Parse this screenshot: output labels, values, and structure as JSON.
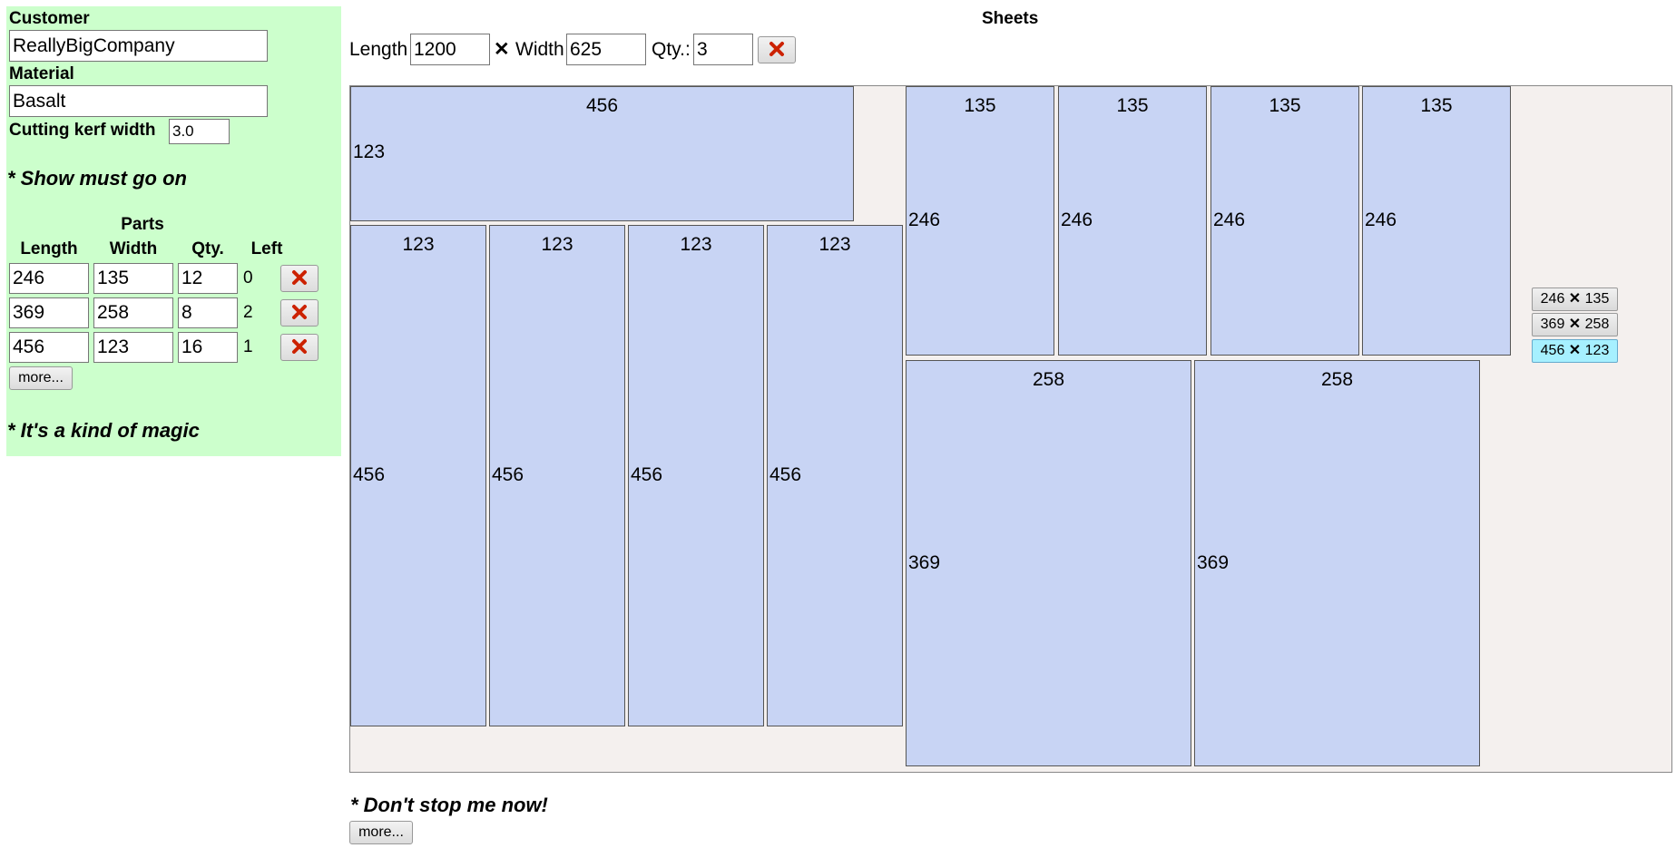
{
  "customer": {
    "label": "Customer",
    "value": "ReallyBigCompany"
  },
  "material": {
    "label": "Material",
    "value": "Basalt"
  },
  "kerf": {
    "label": "Cutting kerf width",
    "value": "3.0"
  },
  "note1": "* Show must go on",
  "parts": {
    "title": "Parts",
    "headers": {
      "length": "Length",
      "width": "Width",
      "qty": "Qty.",
      "left": "Left"
    },
    "rows": [
      {
        "length": "246",
        "width": "135",
        "qty": "12",
        "left": "0"
      },
      {
        "length": "369",
        "width": "258",
        "qty": "8",
        "left": "2"
      },
      {
        "length": "456",
        "width": "123",
        "qty": "16",
        "left": "1"
      }
    ],
    "more": "more..."
  },
  "note2": "* It's a kind of magic",
  "sheets": {
    "title": "Sheets",
    "length_label": "Length",
    "length": "1200",
    "times": "✕",
    "width_label": "Width",
    "width": "625",
    "qty_label": "Qty.:",
    "qty": "3"
  },
  "layout": [
    {
      "w": "456",
      "h": "123"
    },
    {
      "w": "123",
      "h": "456"
    },
    {
      "w": "123",
      "h": "456"
    },
    {
      "w": "123",
      "h": "456"
    },
    {
      "w": "123",
      "h": "456"
    },
    {
      "w": "135",
      "h": "246"
    },
    {
      "w": "135",
      "h": "246"
    },
    {
      "w": "135",
      "h": "246"
    },
    {
      "w": "135",
      "h": "246"
    },
    {
      "w": "258",
      "h": "369"
    },
    {
      "w": "258",
      "h": "369"
    }
  ],
  "chips": [
    {
      "a": "246",
      "b": "135",
      "selected": false
    },
    {
      "a": "369",
      "b": "258",
      "selected": false
    },
    {
      "a": "456",
      "b": "123",
      "selected": true
    }
  ],
  "chip_times": "✕",
  "note3": "* Don't stop me now!",
  "more_bottom": "more...",
  "colors": {
    "panel": "#ccffcc",
    "part": "#c8d4f4",
    "sheet": "#f4f0ee",
    "chip_selected": "#a6f0ff",
    "delete_icon": "#cc2200"
  }
}
